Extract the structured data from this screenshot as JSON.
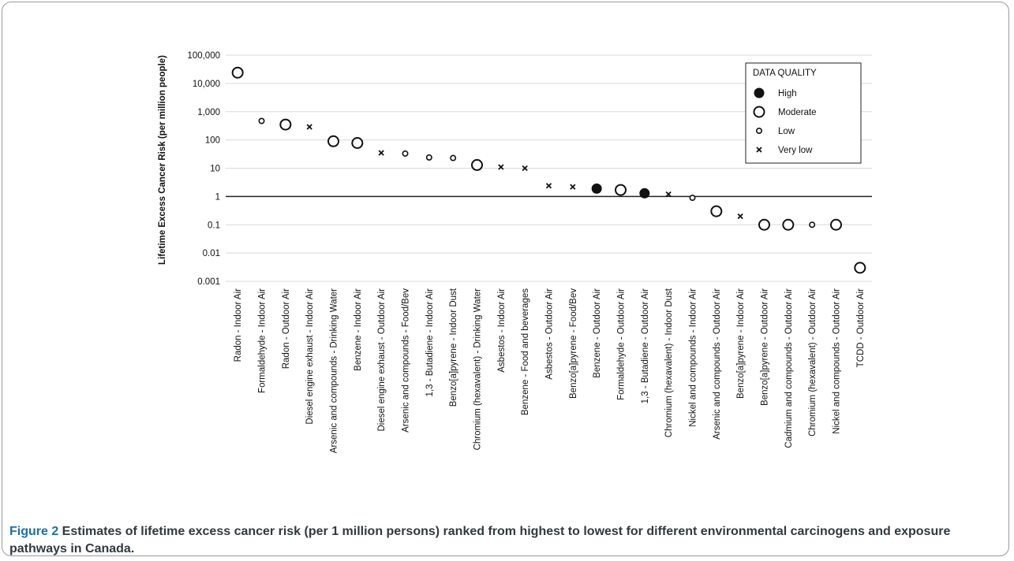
{
  "caption": {
    "label": "Figure 2",
    "text": " Estimates of lifetime excess cancer risk (per 1 million persons) ranked from highest to lowest for different environmental carcinogens and exposure pathways in Canada."
  },
  "colors": {
    "marker": "#111111",
    "grid": "#d9d9d9",
    "reference_line": "#222222",
    "caption_label": "#1c6fa3",
    "caption_text": "#2f3a40"
  },
  "chart_data": {
    "type": "scatter",
    "ylabel": "Lifetime Excess Cancer Risk (per million people)",
    "xlabel": "",
    "y_scale": "log",
    "ylim": [
      0.001,
      100000
    ],
    "y_ticks": [
      0.001,
      0.01,
      0.1,
      1,
      10,
      100,
      1000,
      10000,
      100000
    ],
    "y_tick_labels": [
      "0.001",
      "0.01",
      "0.1",
      "1",
      "10",
      "100",
      "1,000",
      "10,000",
      "100,000"
    ],
    "reference_line_y": 1,
    "grid": true,
    "legend": {
      "title": "DATA QUALITY",
      "position": "top-right",
      "entries": [
        {
          "label": "High",
          "marker": "filled-circle"
        },
        {
          "label": "Moderate",
          "marker": "open-circle-large"
        },
        {
          "label": "Low",
          "marker": "open-circle-small"
        },
        {
          "label": "Very low",
          "marker": "cross"
        }
      ]
    },
    "categories": [
      "Radon - Indoor Air",
      "Formaldehyde - Indoor Air",
      "Radon - Outdoor Air",
      "Diesel engine exhaust - Indoor Air",
      "Arsenic and compounds - Drinking Water",
      "Benzene - Indoor Air",
      "Diesel engine exhaust - Outdoor Air",
      "Arsenic and compounds - Food/Bev",
      "1,3 - Butadiene - Indoor Air",
      "Benzo[a]pyrene - Indoor Dust",
      "Chromium (hexavalent) - Drinking Water",
      "Asbestos - Indoor Air",
      "Benzene - Food and beverages",
      "Asbestos - Outdoor Air",
      "Benzo[a]pyrene - Food/Bev",
      "Benzene - Outdoor Air",
      "Formaldehyde - Outdoor Air",
      "1,3 - Butadiene - Outdoor Air",
      "Chromium (hexavalent) - Indoor Dust",
      "Nickel and compounds - Indoor Air",
      "Arsenic and compounds - Outdoor Air",
      "Benzo[a]pyrene - Indoor Air",
      "Benzo[a]pyrene - Outdoor Air",
      "Cadmium and compounds - Outdoor Air",
      "Chromium (hexavalent) - Outdoor Air",
      "Nickel and compounds - Outdoor Air",
      "TCDD - Outdoor Air"
    ],
    "values": [
      24000,
      470,
      350,
      290,
      90,
      78,
      35,
      33,
      24,
      23,
      13,
      11,
      10,
      2.4,
      2.2,
      1.9,
      1.7,
      1.3,
      1.2,
      0.9,
      0.3,
      0.2,
      0.1,
      0.1,
      0.1,
      0.1,
      0.003
    ],
    "quality": [
      "Moderate",
      "Low",
      "Moderate",
      "Very low",
      "Moderate",
      "Moderate",
      "Very low",
      "Low",
      "Low",
      "Low",
      "Moderate",
      "Very low",
      "Very low",
      "Very low",
      "Very low",
      "High",
      "Moderate",
      "High",
      "Very low",
      "Low",
      "Moderate",
      "Very low",
      "Moderate",
      "Moderate",
      "Low",
      "Moderate",
      "Moderate"
    ]
  }
}
